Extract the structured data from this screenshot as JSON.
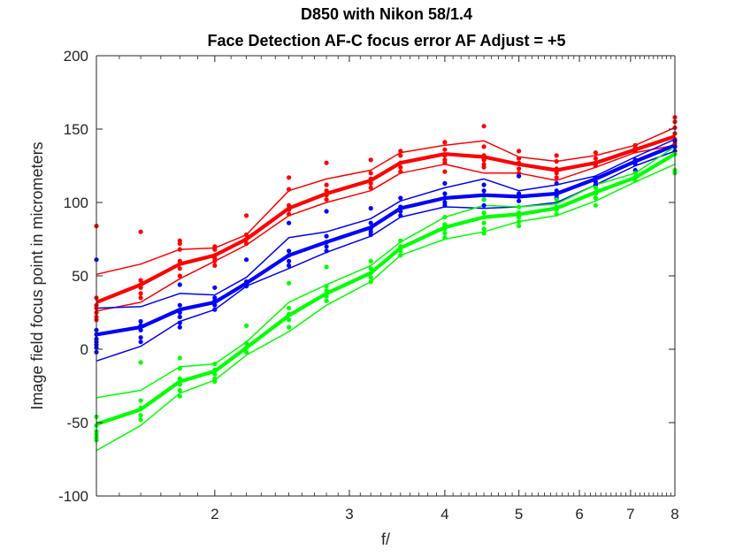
{
  "chart_data": {
    "type": "line",
    "title": "D850 with Nikon 58/1.4",
    "subtitle": "Face Detection AF-C focus error AF Adjust = +5",
    "xlabel": "f/",
    "ylabel": "Image field focus point in micrometers",
    "x_scale": "log",
    "xlim": [
      1.4,
      8
    ],
    "ylim": [
      -100,
      200
    ],
    "x_ticks": [
      2,
      3,
      4,
      5,
      6,
      7,
      8
    ],
    "x_tick_labels": [
      "2",
      "3",
      "4",
      "5",
      "6",
      "7",
      "8"
    ],
    "y_ticks": [
      -100,
      -50,
      0,
      50,
      100,
      150,
      200
    ],
    "y_tick_labels": [
      "-100",
      "-50",
      "0",
      "50",
      "100",
      "150",
      "200"
    ],
    "grid": false,
    "x": [
      1.4,
      1.6,
      1.8,
      2.0,
      2.2,
      2.5,
      2.8,
      3.2,
      3.5,
      4.0,
      4.5,
      5.0,
      5.6,
      6.3,
      7.1,
      8.0
    ],
    "series": [
      {
        "color": "#ff0000",
        "role": "mean",
        "values": [
          32,
          44,
          58,
          64,
          75,
          96,
          106,
          115,
          127,
          133,
          131,
          126,
          122,
          127,
          136,
          145
        ]
      },
      {
        "color": "#ff0000",
        "role": "upper",
        "values": [
          51,
          58,
          68,
          69,
          78,
          108,
          116,
          122,
          134,
          139,
          142,
          131,
          128,
          132,
          139,
          151
        ]
      },
      {
        "color": "#ff0000",
        "role": "lower",
        "values": [
          26,
          32,
          48,
          60,
          71,
          91,
          100,
          108,
          120,
          126,
          120,
          120,
          115,
          124,
          134,
          139
        ]
      },
      {
        "color": "#0000ff",
        "role": "mean",
        "values": [
          10,
          15,
          27,
          32,
          45,
          64,
          73,
          83,
          96,
          103,
          105,
          104,
          106,
          116,
          128,
          139
        ]
      },
      {
        "color": "#0000ff",
        "role": "upper",
        "values": [
          28,
          29,
          38,
          37,
          49,
          76,
          80,
          89,
          101,
          110,
          116,
          108,
          112,
          118,
          131,
          143
        ]
      },
      {
        "color": "#0000ff",
        "role": "lower",
        "values": [
          -8,
          2,
          19,
          27,
          43,
          55,
          66,
          77,
          90,
          97,
          96,
          97,
          100,
          112,
          125,
          135
        ]
      },
      {
        "color": "#00ff00",
        "role": "mean",
        "values": [
          -51,
          -41,
          -22,
          -15,
          1,
          23,
          38,
          52,
          69,
          83,
          90,
          92,
          96,
          107,
          117,
          133
        ]
      },
      {
        "color": "#00ff00",
        "role": "upper",
        "values": [
          -33,
          -28,
          -12,
          -10,
          5,
          32,
          44,
          57,
          73,
          90,
          98,
          97,
          99,
          112,
          120,
          138
        ]
      },
      {
        "color": "#00ff00",
        "role": "lower",
        "values": [
          -69,
          -52,
          -30,
          -21,
          -4,
          12,
          30,
          46,
          64,
          75,
          80,
          87,
          91,
          101,
          114,
          126
        ]
      }
    ],
    "scatter": [
      {
        "color": "#ff0000",
        "points": [
          [
            1.4,
            84
          ],
          [
            1.4,
            35
          ],
          [
            1.4,
            30
          ],
          [
            1.4,
            28
          ],
          [
            1.4,
            25
          ],
          [
            1.4,
            22
          ],
          [
            1.4,
            20
          ],
          [
            1.6,
            80
          ],
          [
            1.6,
            47
          ],
          [
            1.6,
            44
          ],
          [
            1.6,
            42
          ],
          [
            1.6,
            38
          ],
          [
            1.6,
            35
          ],
          [
            1.8,
            74
          ],
          [
            1.8,
            72
          ],
          [
            1.8,
            68
          ],
          [
            1.8,
            60
          ],
          [
            1.8,
            55
          ],
          [
            1.8,
            50
          ],
          [
            2.0,
            70
          ],
          [
            2.0,
            68
          ],
          [
            2.0,
            64
          ],
          [
            2.0,
            62
          ],
          [
            2.0,
            60
          ],
          [
            2.0,
            57
          ],
          [
            2.2,
            91
          ],
          [
            2.2,
            78
          ],
          [
            2.2,
            75
          ],
          [
            2.2,
            72
          ],
          [
            2.5,
            117
          ],
          [
            2.5,
            109
          ],
          [
            2.5,
            98
          ],
          [
            2.5,
            95
          ],
          [
            2.5,
            92
          ],
          [
            2.8,
            127
          ],
          [
            2.8,
            112
          ],
          [
            2.8,
            108
          ],
          [
            2.8,
            105
          ],
          [
            2.8,
            102
          ],
          [
            3.2,
            129
          ],
          [
            3.2,
            120
          ],
          [
            3.2,
            116
          ],
          [
            3.2,
            113
          ],
          [
            3.2,
            110
          ],
          [
            3.5,
            135
          ],
          [
            3.5,
            132
          ],
          [
            3.5,
            127
          ],
          [
            3.5,
            124
          ],
          [
            3.5,
            121
          ],
          [
            4.0,
            141
          ],
          [
            4.0,
            136
          ],
          [
            4.0,
            132
          ],
          [
            4.0,
            129
          ],
          [
            4.0,
            127
          ],
          [
            4.0,
            121
          ],
          [
            4.5,
            152
          ],
          [
            4.5,
            138
          ],
          [
            4.5,
            132
          ],
          [
            4.5,
            129
          ],
          [
            4.5,
            126
          ],
          [
            4.5,
            124
          ],
          [
            5.0,
            135
          ],
          [
            5.0,
            130
          ],
          [
            5.0,
            127
          ],
          [
            5.0,
            123
          ],
          [
            5.0,
            120
          ],
          [
            5.6,
            132
          ],
          [
            5.6,
            128
          ],
          [
            5.6,
            123
          ],
          [
            5.6,
            120
          ],
          [
            5.6,
            117
          ],
          [
            6.3,
            134
          ],
          [
            6.3,
            130
          ],
          [
            6.3,
            127
          ],
          [
            6.3,
            125
          ],
          [
            7.1,
            139
          ],
          [
            7.1,
            137
          ],
          [
            7.1,
            135
          ],
          [
            8.0,
            158
          ],
          [
            8.0,
            155
          ],
          [
            8.0,
            151
          ],
          [
            8.0,
            147
          ],
          [
            8.0,
            143
          ],
          [
            8.0,
            140
          ],
          [
            8.0,
            138
          ]
        ]
      },
      {
        "color": "#0000ff",
        "points": [
          [
            1.4,
            61
          ],
          [
            1.4,
            13
          ],
          [
            1.4,
            10
          ],
          [
            1.4,
            7
          ],
          [
            1.4,
            5
          ],
          [
            1.4,
            3
          ],
          [
            1.4,
            1
          ],
          [
            1.4,
            -2
          ],
          [
            1.6,
            19
          ],
          [
            1.6,
            16
          ],
          [
            1.6,
            13
          ],
          [
            1.6,
            8
          ],
          [
            1.6,
            5
          ],
          [
            1.8,
            44
          ],
          [
            1.8,
            30
          ],
          [
            1.8,
            25
          ],
          [
            1.8,
            22
          ],
          [
            1.8,
            18
          ],
          [
            1.8,
            15
          ],
          [
            2.0,
            42
          ],
          [
            2.0,
            35
          ],
          [
            2.0,
            33
          ],
          [
            2.0,
            30
          ],
          [
            2.0,
            27
          ],
          [
            2.2,
            61
          ],
          [
            2.2,
            46
          ],
          [
            2.2,
            44
          ],
          [
            2.2,
            43
          ],
          [
            2.5,
            86
          ],
          [
            2.5,
            67
          ],
          [
            2.5,
            64
          ],
          [
            2.5,
            60
          ],
          [
            2.5,
            57
          ],
          [
            2.8,
            94
          ],
          [
            2.8,
            77
          ],
          [
            2.8,
            73
          ],
          [
            2.8,
            70
          ],
          [
            2.8,
            67
          ],
          [
            3.2,
            96
          ],
          [
            3.2,
            86
          ],
          [
            3.2,
            82
          ],
          [
            3.2,
            80
          ],
          [
            3.2,
            78
          ],
          [
            3.5,
            103
          ],
          [
            3.5,
            97
          ],
          [
            3.5,
            94
          ],
          [
            3.5,
            91
          ],
          [
            4.0,
            113
          ],
          [
            4.0,
            106
          ],
          [
            4.0,
            103
          ],
          [
            4.0,
            100
          ],
          [
            4.0,
            98
          ],
          [
            4.5,
            112
          ],
          [
            4.5,
            108
          ],
          [
            4.5,
            105
          ],
          [
            4.5,
            102
          ],
          [
            4.5,
            98
          ],
          [
            5.0,
            118
          ],
          [
            5.0,
            106
          ],
          [
            5.0,
            104
          ],
          [
            5.0,
            101
          ],
          [
            5.6,
            113
          ],
          [
            5.6,
            108
          ],
          [
            5.6,
            105
          ],
          [
            5.6,
            103
          ],
          [
            6.3,
            117
          ],
          [
            6.3,
            114
          ],
          [
            6.3,
            112
          ],
          [
            7.1,
            129
          ],
          [
            7.1,
            126
          ],
          [
            7.1,
            122
          ],
          [
            8.0,
            142
          ],
          [
            8.0,
            138
          ],
          [
            8.0,
            135
          ]
        ]
      },
      {
        "color": "#00ff00",
        "points": [
          [
            1.4,
            -46
          ],
          [
            1.4,
            -52
          ],
          [
            1.4,
            -56
          ],
          [
            1.4,
            -58
          ],
          [
            1.4,
            -60
          ],
          [
            1.4,
            -62
          ],
          [
            1.6,
            -9
          ],
          [
            1.6,
            -35
          ],
          [
            1.6,
            -40
          ],
          [
            1.6,
            -45
          ],
          [
            1.6,
            -48
          ],
          [
            1.8,
            -6
          ],
          [
            1.8,
            -13
          ],
          [
            1.8,
            -20
          ],
          [
            1.8,
            -24
          ],
          [
            1.8,
            -28
          ],
          [
            1.8,
            -32
          ],
          [
            2.0,
            -10
          ],
          [
            2.0,
            -14
          ],
          [
            2.0,
            -17
          ],
          [
            2.0,
            -20
          ],
          [
            2.0,
            -22
          ],
          [
            2.2,
            16
          ],
          [
            2.2,
            4
          ],
          [
            2.2,
            1
          ],
          [
            2.2,
            -2
          ],
          [
            2.5,
            45
          ],
          [
            2.5,
            28
          ],
          [
            2.5,
            24
          ],
          [
            2.5,
            20
          ],
          [
            2.5,
            15
          ],
          [
            2.8,
            56
          ],
          [
            2.8,
            43
          ],
          [
            2.8,
            40
          ],
          [
            2.8,
            36
          ],
          [
            2.8,
            33
          ],
          [
            3.2,
            60
          ],
          [
            3.2,
            55
          ],
          [
            3.2,
            52
          ],
          [
            3.2,
            49
          ],
          [
            3.2,
            46
          ],
          [
            3.5,
            74
          ],
          [
            3.5,
            70
          ],
          [
            3.5,
            67
          ],
          [
            3.5,
            64
          ],
          [
            4.0,
            90
          ],
          [
            4.0,
            85
          ],
          [
            4.0,
            82
          ],
          [
            4.0,
            79
          ],
          [
            4.0,
            76
          ],
          [
            4.5,
            102
          ],
          [
            4.5,
            93
          ],
          [
            4.5,
            90
          ],
          [
            4.5,
            86
          ],
          [
            4.5,
            82
          ],
          [
            4.5,
            79
          ],
          [
            5.0,
            97
          ],
          [
            5.0,
            93
          ],
          [
            5.0,
            90
          ],
          [
            5.0,
            87
          ],
          [
            5.0,
            84
          ],
          [
            5.6,
            102
          ],
          [
            5.6,
            97
          ],
          [
            5.6,
            95
          ],
          [
            5.6,
            92
          ],
          [
            6.3,
            110
          ],
          [
            6.3,
            106
          ],
          [
            6.3,
            103
          ],
          [
            6.3,
            98
          ],
          [
            7.1,
            120
          ],
          [
            7.1,
            117
          ],
          [
            7.1,
            115
          ],
          [
            8.0,
            133
          ],
          [
            8.0,
            122
          ],
          [
            8.0,
            120
          ]
        ]
      }
    ]
  }
}
